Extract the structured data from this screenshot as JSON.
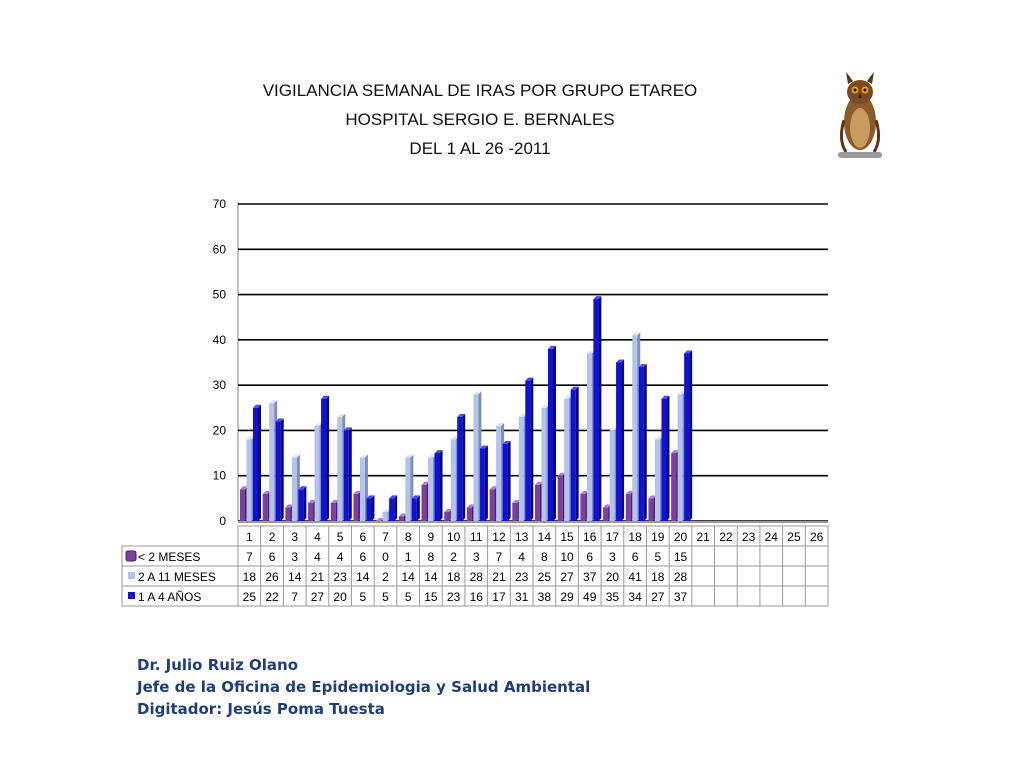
{
  "title_lines": [
    "VIGILANCIA SEMANAL DE IRAS POR GRUPO ETAREO",
    "HOSPITAL SERGIO E. BERNALES",
    "DEL 1 AL 26 -2011"
  ],
  "logo": {
    "icon": "owl-icon"
  },
  "chart_data": {
    "type": "bar",
    "categories": [
      "1",
      "2",
      "3",
      "4",
      "5",
      "6",
      "7",
      "8",
      "9",
      "10",
      "11",
      "12",
      "13",
      "14",
      "15",
      "16",
      "17",
      "18",
      "19",
      "20",
      "21",
      "22",
      "23",
      "24",
      "25",
      "26"
    ],
    "ylim": [
      0,
      70
    ],
    "yticks": [
      0,
      10,
      20,
      30,
      40,
      50,
      60,
      70
    ],
    "grid": true,
    "legend": "table-left",
    "series": [
      {
        "name": "< 2 MESES",
        "color": "#7b3f9e",
        "values": [
          7,
          6,
          3,
          4,
          4,
          6,
          0,
          1,
          8,
          2,
          3,
          7,
          4,
          8,
          10,
          6,
          3,
          6,
          5,
          15,
          null,
          null,
          null,
          null,
          null,
          null
        ]
      },
      {
        "name": "2 A 11 MESES",
        "color": "#b4c4e8",
        "values": [
          18,
          26,
          14,
          21,
          23,
          14,
          2,
          14,
          14,
          18,
          28,
          21,
          23,
          25,
          27,
          37,
          20,
          41,
          18,
          28,
          null,
          null,
          null,
          null,
          null,
          null
        ]
      },
      {
        "name": "1 A 4 AÑOS",
        "color": "#1010d8",
        "values": [
          25,
          22,
          7,
          27,
          20,
          5,
          5,
          5,
          15,
          23,
          16,
          17,
          31,
          38,
          29,
          49,
          35,
          34,
          27,
          37,
          null,
          null,
          null,
          null,
          null,
          null
        ]
      }
    ]
  },
  "footer_lines": [
    "Dr.  Julio Ruiz Olano",
    "Jefe de la Oficina de Epidemiologia y  Salud Ambiental",
    "Digitador: Jesús Poma Tuesta"
  ]
}
